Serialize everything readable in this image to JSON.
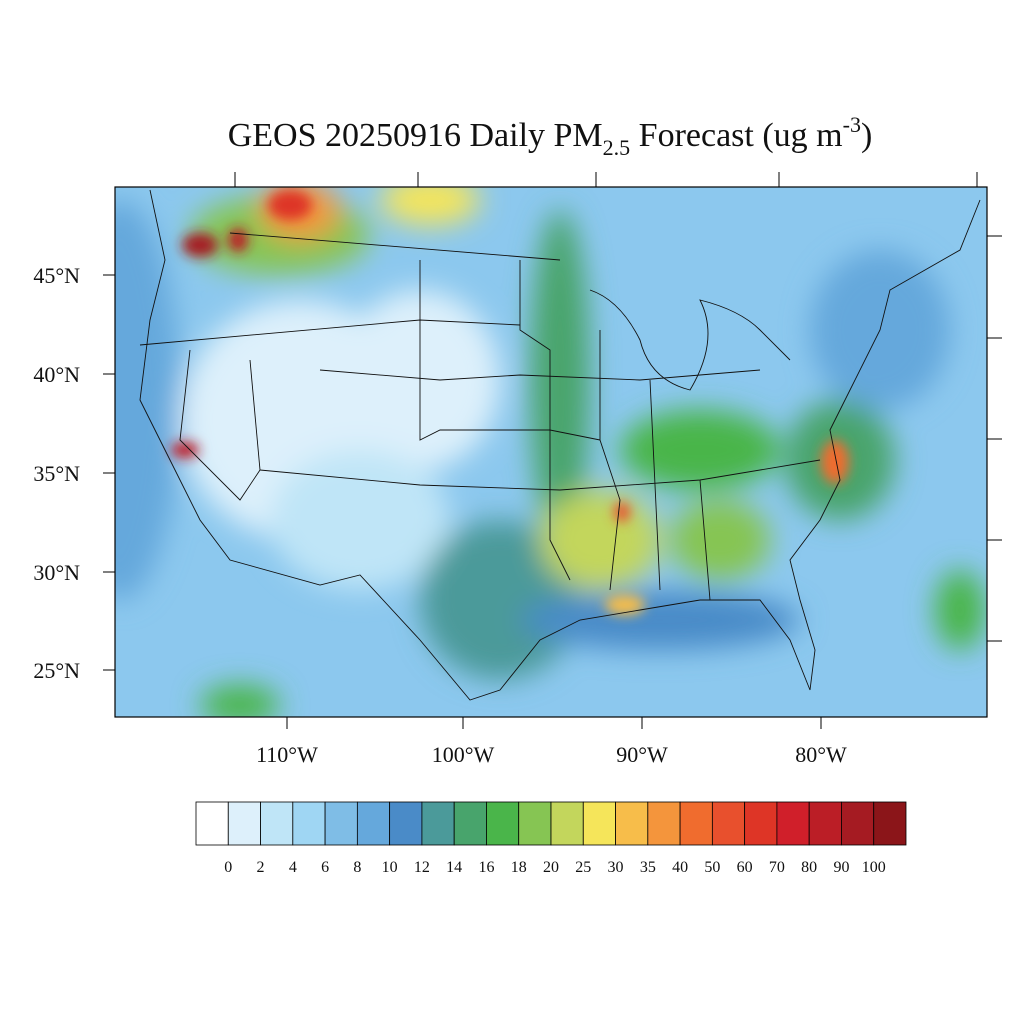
{
  "title": {
    "main": "GEOS 20250916 Daily PM",
    "subscript": "2.5",
    "after": " Forecast (ug m",
    "superscript": "-3",
    "close": ")"
  },
  "map": {
    "lat_labels": [
      "45°N",
      "40°N",
      "35°N",
      "30°N",
      "25°N"
    ],
    "lon_labels": [
      "110°W",
      "100°W",
      "90°W",
      "80°W"
    ]
  },
  "colorbar": {
    "labels": [
      0,
      2,
      4,
      6,
      8,
      10,
      12,
      14,
      16,
      18,
      20,
      25,
      30,
      35,
      40,
      50,
      60,
      70,
      80,
      90,
      100
    ],
    "colors": [
      "#ffffff",
      "#ddf0fb",
      "#bfe5f7",
      "#9fd6f3",
      "#7fbde6",
      "#65a8dc",
      "#4a8bc8",
      "#4b9a9a",
      "#48a46c",
      "#4ab54a",
      "#86c553",
      "#c3d65c",
      "#f5e55a",
      "#f7bd4a",
      "#f4953c",
      "#f06c2e",
      "#e8502d",
      "#de3526",
      "#d01f2a",
      "#bb1e26",
      "#a51b22",
      "#8b1519"
    ]
  }
}
